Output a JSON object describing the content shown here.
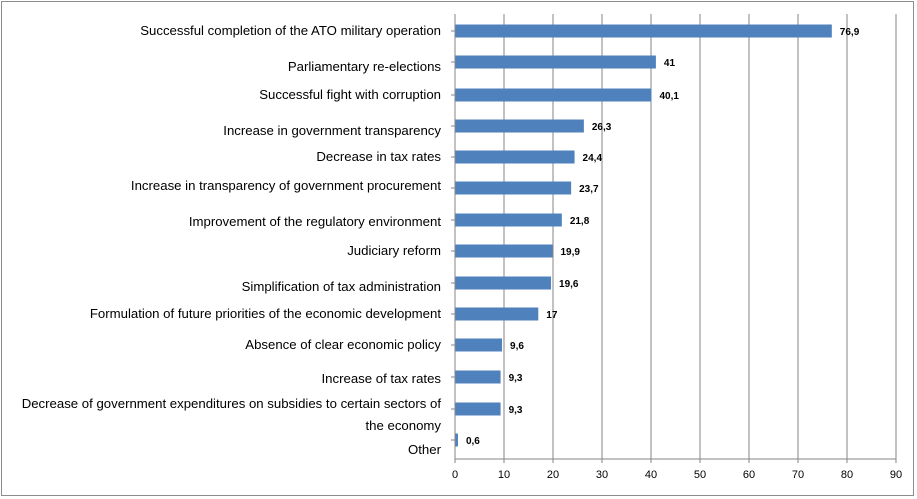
{
  "chart_data": {
    "type": "bar",
    "orientation": "horizontal",
    "categories": [
      "Successful completion of the ATO military operation",
      "Parliamentary re-elections",
      "Successful fight with corruption",
      "Increase in government transparency",
      "Decrease in tax rates",
      "Increase in transparency of government procurement",
      "Improvement of the regulatory environment",
      "Judiciary reform",
      "Simplification of tax administration",
      "Formulation of future priorities of the economic development",
      "Absence of clear economic policy",
      "Increase of tax rates",
      "Decrease of government expenditures on subsidies to certain sectors of the economy",
      "Other"
    ],
    "values": [
      76.9,
      41,
      40.1,
      26.3,
      24.4,
      23.7,
      21.8,
      19.9,
      19.6,
      17,
      9.6,
      9.3,
      9.3,
      0.6
    ],
    "data_labels": [
      "76,9",
      "41",
      "40,1",
      "26,3",
      "24,4",
      "23,7",
      "21,8",
      "19,9",
      "19,6",
      "17",
      "9,6",
      "9,3",
      "9,3",
      "0,6"
    ],
    "xlim": [
      0,
      90
    ],
    "x_ticks": [
      "0",
      "10",
      "20",
      "30",
      "40",
      "50",
      "60",
      "70",
      "80",
      "90"
    ],
    "grid": true,
    "bar_color": "#4f81bd",
    "grid_color": "#868686",
    "title": "",
    "xlabel": "",
    "ylabel": ""
  }
}
